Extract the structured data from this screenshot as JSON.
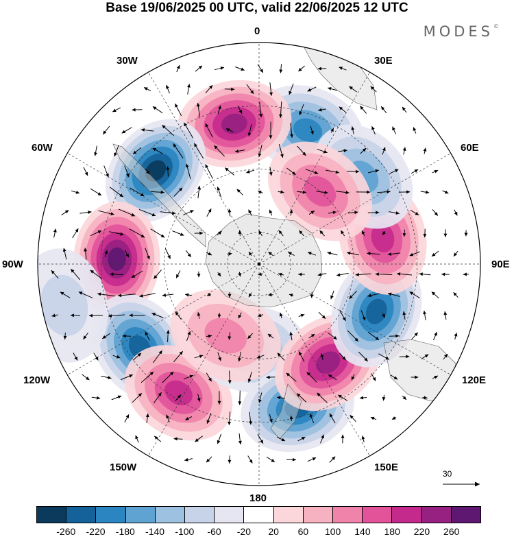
{
  "title": "Base 19/06/2025 00 UTC, valid 22/06/2025 12 UTC",
  "brand": "MODES",
  "brand_mark": "©",
  "longitude_labels": {
    "lon_0": "0",
    "lon_30e": "30E",
    "lon_60e": "60E",
    "lon_90e": "90E",
    "lon_120e": "120E",
    "lon_150e": "150E",
    "lon_180": "180",
    "lon_150w": "150W",
    "lon_120w": "120W",
    "lon_90w": "90W",
    "lon_60w": "60W",
    "lon_30w": "30W"
  },
  "reference_vector": {
    "value": "30"
  },
  "colorbar": {
    "colors": [
      "#0b3a5c",
      "#15629a",
      "#2a85c0",
      "#5ea3d1",
      "#9dc1e0",
      "#c7d3e8",
      "#e6e6f2",
      "#ffffff",
      "#fbd6da",
      "#f7b2c1",
      "#f083aa",
      "#e2539a",
      "#c42a8c",
      "#962180",
      "#5e1872"
    ],
    "ticks": [
      "-260",
      "-220",
      "-180",
      "-140",
      "-100",
      "-60",
      "-20",
      "20",
      "60",
      "100",
      "140",
      "180",
      "220",
      "260"
    ]
  },
  "anomaly_centers": [
    {
      "lon": 20,
      "lat": -45,
      "sign": -1,
      "strength": 0.75
    },
    {
      "lon": -10,
      "lat": -45,
      "sign": 1,
      "strength": 0.9
    },
    {
      "lon": -48,
      "lat": -46,
      "sign": -1,
      "strength": 1.0
    },
    {
      "lon": -88,
      "lat": -45,
      "sign": 1,
      "strength": 1.0
    },
    {
      "lon": -125,
      "lat": -44,
      "sign": -1,
      "strength": 0.9
    },
    {
      "lon": -148,
      "lat": -42,
      "sign": 1,
      "strength": 0.75
    },
    {
      "lon": -175,
      "lat": -63,
      "sign": -1,
      "strength": 0.5
    },
    {
      "lon": 165,
      "lat": -43,
      "sign": -1,
      "strength": 0.8
    },
    {
      "lon": 145,
      "lat": -52,
      "sign": 1,
      "strength": 0.85
    },
    {
      "lon": 112,
      "lat": -50,
      "sign": -1,
      "strength": 0.9
    },
    {
      "lon": 78,
      "lat": -50,
      "sign": 1,
      "strength": 0.75
    },
    {
      "lon": 50,
      "lat": -47,
      "sign": -1,
      "strength": 0.5
    },
    {
      "lon": 40,
      "lat": -60,
      "sign": 1,
      "strength": 0.5
    },
    {
      "lon": -155,
      "lat": -65,
      "sign": 1,
      "strength": 0.4
    },
    {
      "lon": -102,
      "lat": -27,
      "sign": -1,
      "strength": 0.3
    }
  ]
}
